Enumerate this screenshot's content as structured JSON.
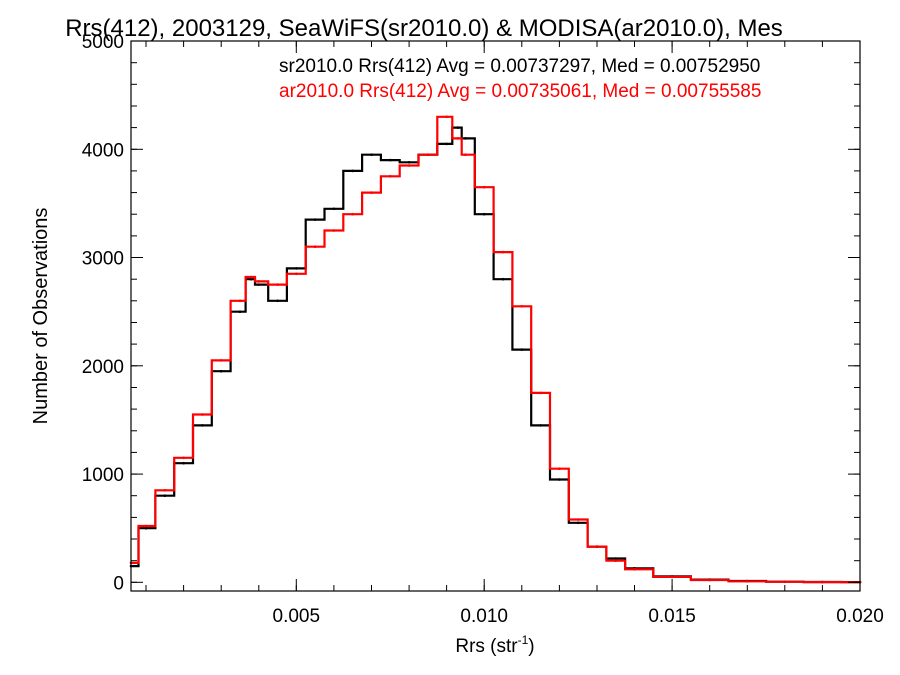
{
  "chart_data": {
    "type": "line",
    "title": "Rrs(412), 2003129, SeaWiFS(sr2010.0) & MODISA(ar2010.0), Mes",
    "xlabel": "Rrs (str",
    "xlabel_superscript": "-1",
    "xlabel_suffix": ")",
    "ylabel": "Number of Observations",
    "xlim": [
      0.0006,
      0.02
    ],
    "ylim": [
      -80,
      5000
    ],
    "xticks": [
      0.005,
      0.01,
      0.015,
      0.02
    ],
    "xtick_labels": [
      "0.005",
      "0.010",
      "0.015",
      "0.020"
    ],
    "yticks": [
      0,
      1000,
      2000,
      3000,
      4000,
      5000
    ],
    "ytick_labels": [
      "0",
      "1000",
      "2000",
      "3000",
      "4000",
      "5000"
    ],
    "grid": false,
    "legend": "top-right",
    "series": [
      {
        "name": "sr2010.0 Rrs(412) Avg = 0.00737297, Med = 0.00752950",
        "color": "#000000",
        "x": [
          0.0006,
          0.001,
          0.0015,
          0.002,
          0.0025,
          0.003,
          0.0035,
          0.0038,
          0.004,
          0.0045,
          0.005,
          0.0055,
          0.006,
          0.0065,
          0.007,
          0.0075,
          0.008,
          0.0085,
          0.009,
          0.0093,
          0.0095,
          0.01,
          0.0105,
          0.011,
          0.0115,
          0.012,
          0.0125,
          0.013,
          0.0135,
          0.014,
          0.015,
          0.016,
          0.017,
          0.018,
          0.019,
          0.02
        ],
        "y": [
          150,
          500,
          800,
          1100,
          1450,
          1950,
          2500,
          2800,
          2750,
          2600,
          2900,
          3350,
          3450,
          3800,
          3950,
          3900,
          3880,
          3950,
          4050,
          4200,
          4100,
          3400,
          2800,
          2150,
          1450,
          950,
          550,
          330,
          220,
          130,
          55,
          25,
          12,
          6,
          3,
          2
        ]
      },
      {
        "name": "ar2010.0 Rrs(412) Avg = 0.00735061, Med = 0.00755585",
        "color": "#ff0000",
        "x": [
          0.0006,
          0.001,
          0.0015,
          0.002,
          0.0025,
          0.003,
          0.0035,
          0.0038,
          0.004,
          0.0045,
          0.005,
          0.0055,
          0.006,
          0.0065,
          0.007,
          0.0075,
          0.008,
          0.0085,
          0.009,
          0.0093,
          0.0095,
          0.01,
          0.0105,
          0.011,
          0.0115,
          0.012,
          0.0125,
          0.013,
          0.0135,
          0.014,
          0.015,
          0.016,
          0.017,
          0.018,
          0.019,
          0.02
        ],
        "y": [
          180,
          520,
          850,
          1150,
          1550,
          2050,
          2600,
          2820,
          2780,
          2750,
          2850,
          3100,
          3250,
          3400,
          3600,
          3750,
          3850,
          3950,
          4300,
          4100,
          3950,
          3650,
          3050,
          2550,
          1750,
          1050,
          580,
          330,
          200,
          120,
          50,
          22,
          10,
          5,
          2,
          1
        ]
      }
    ]
  }
}
